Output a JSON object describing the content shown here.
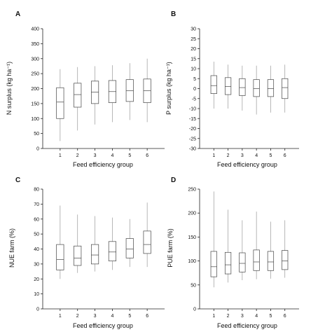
{
  "chart_data": [
    {
      "panel": "A",
      "type": "boxplot",
      "xlabel": "Feed efficiency group",
      "ylabel": "N  surplus (kg ha⁻¹)",
      "ylim": [
        0,
        400
      ],
      "yticks": [
        0,
        50,
        100,
        150,
        200,
        250,
        300,
        350,
        400
      ],
      "categories": [
        "1",
        "2",
        "3",
        "4",
        "5",
        "6"
      ],
      "boxes": [
        {
          "min": 25,
          "q1": 100,
          "median": 155,
          "q3": 203,
          "max": 265
        },
        {
          "min": 60,
          "q1": 138,
          "median": 180,
          "q3": 218,
          "max": 272
        },
        {
          "min": 80,
          "q1": 150,
          "median": 188,
          "q3": 225,
          "max": 275
        },
        {
          "min": 88,
          "q1": 153,
          "median": 190,
          "q3": 227,
          "max": 278
        },
        {
          "min": 95,
          "q1": 157,
          "median": 193,
          "q3": 230,
          "max": 285
        },
        {
          "min": 88,
          "q1": 153,
          "median": 193,
          "q3": 232,
          "max": 300
        }
      ]
    },
    {
      "panel": "B",
      "type": "boxplot",
      "xlabel": "Feed efficiency group",
      "ylabel": "P  surplus (kg ha⁻¹)",
      "ylim": [
        -30,
        30
      ],
      "yticks": [
        -30,
        -25,
        -20,
        -15,
        -10,
        -5,
        0,
        5,
        10,
        15,
        20,
        25,
        30
      ],
      "categories": [
        "1",
        "2",
        "3",
        "4",
        "5",
        "6"
      ],
      "boxes": [
        {
          "min": -10,
          "q1": -2.5,
          "median": 1.5,
          "q3": 6.5,
          "max": 13.5
        },
        {
          "min": -10,
          "q1": -3,
          "median": 1,
          "q3": 5.5,
          "max": 12
        },
        {
          "min": -11,
          "q1": -3.5,
          "median": 0.5,
          "q3": 5,
          "max": 11.5
        },
        {
          "min": -13,
          "q1": -4,
          "median": 0,
          "q3": 4.5,
          "max": 11.5
        },
        {
          "min": -12,
          "q1": -4,
          "median": 0,
          "q3": 4.5,
          "max": 11.5
        },
        {
          "min": -12,
          "q1": -5,
          "median": 0.5,
          "q3": 5,
          "max": 12
        }
      ]
    },
    {
      "panel": "C",
      "type": "boxplot",
      "xlabel": "Feed efficiency group",
      "ylabel": "NUE  farm (%)",
      "ylim": [
        0,
        80
      ],
      "yticks": [
        0,
        10,
        20,
        30,
        40,
        50,
        60,
        70,
        80
      ],
      "categories": [
        "1",
        "2",
        "3",
        "4",
        "5",
        "6"
      ],
      "boxes": [
        {
          "min": 20,
          "q1": 26,
          "median": 33,
          "q3": 43,
          "max": 69
        },
        {
          "min": 24,
          "q1": 29,
          "median": 34,
          "q3": 42,
          "max": 63
        },
        {
          "min": 25,
          "q1": 30,
          "median": 36,
          "q3": 43,
          "max": 62
        },
        {
          "min": 26,
          "q1": 32,
          "median": 38,
          "q3": 45,
          "max": 61
        },
        {
          "min": 28,
          "q1": 34,
          "median": 40,
          "q3": 47,
          "max": 60
        },
        {
          "min": 28,
          "q1": 37,
          "median": 43,
          "q3": 52,
          "max": 71
        }
      ]
    },
    {
      "panel": "D",
      "type": "boxplot",
      "xlabel": "Feed efficiency group",
      "ylabel": "PUE  farm (%)",
      "ylim": [
        0,
        250
      ],
      "yticks": [
        0,
        50,
        100,
        150,
        200,
        250
      ],
      "categories": [
        "1",
        "2",
        "3",
        "4",
        "5",
        "6"
      ],
      "boxes": [
        {
          "min": 45,
          "q1": 67,
          "median": 88,
          "q3": 120,
          "max": 245
        },
        {
          "min": 55,
          "q1": 73,
          "median": 92,
          "q3": 118,
          "max": 207
        },
        {
          "min": 60,
          "q1": 77,
          "median": 95,
          "q3": 117,
          "max": 185
        },
        {
          "min": 62,
          "q1": 80,
          "median": 98,
          "q3": 123,
          "max": 203
        },
        {
          "min": 63,
          "q1": 80,
          "median": 98,
          "q3": 120,
          "max": 182
        },
        {
          "min": 65,
          "q1": 82,
          "median": 100,
          "q3": 122,
          "max": 185
        }
      ]
    }
  ]
}
